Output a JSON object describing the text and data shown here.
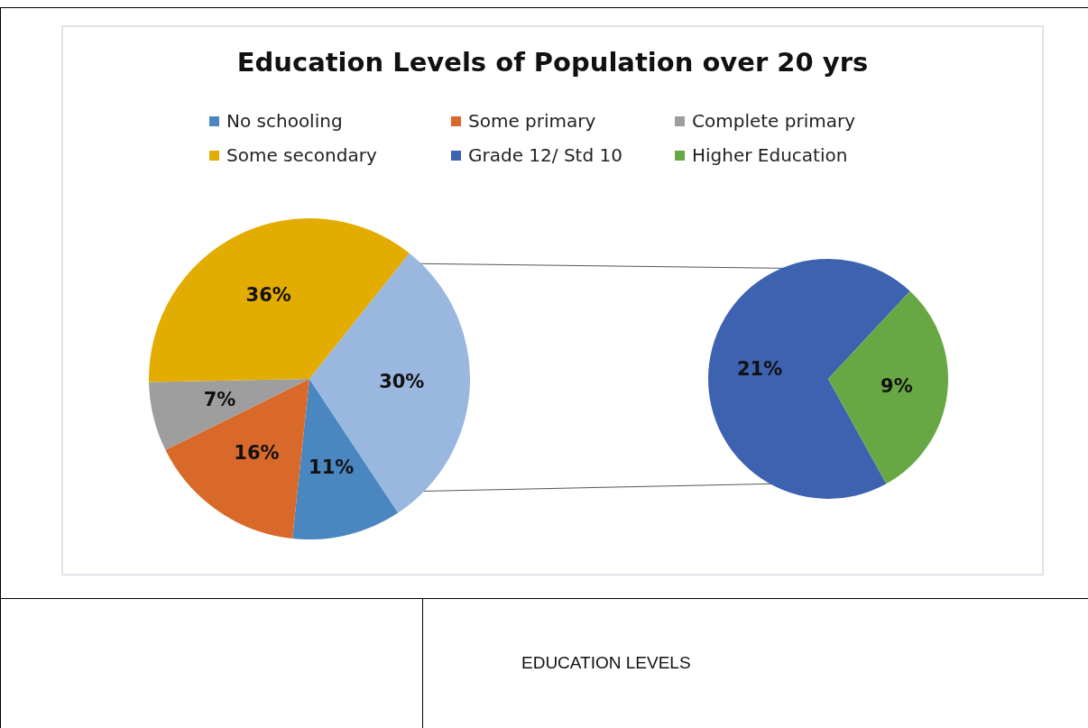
{
  "chart_data": [
    {
      "type": "pie",
      "title": "Education Levels of  Population over 20 yrs",
      "categories": [
        "No schooling",
        "Some primary",
        "Complete primary",
        "Some secondary",
        null
      ],
      "values": [
        11,
        16,
        7,
        36,
        30
      ],
      "colors": [
        "#4a86c0",
        "#d9692a",
        "#9e9e9e",
        "#e3ac00",
        "#99b7df"
      ],
      "value_labels": [
        "11%",
        "16%",
        "7%",
        "36%",
        "30%"
      ],
      "legend": "top",
      "annotations": [
        "EDUCATION LEVELS"
      ]
    },
    {
      "type": "pie",
      "categories": [
        "Grade 12/ Std 10",
        "Higher Education"
      ],
      "values": [
        21,
        9
      ],
      "colors": [
        "#3d62b0",
        "#68a844"
      ],
      "value_labels": [
        "21%",
        "9%"
      ],
      "legend": "top"
    }
  ]
}
